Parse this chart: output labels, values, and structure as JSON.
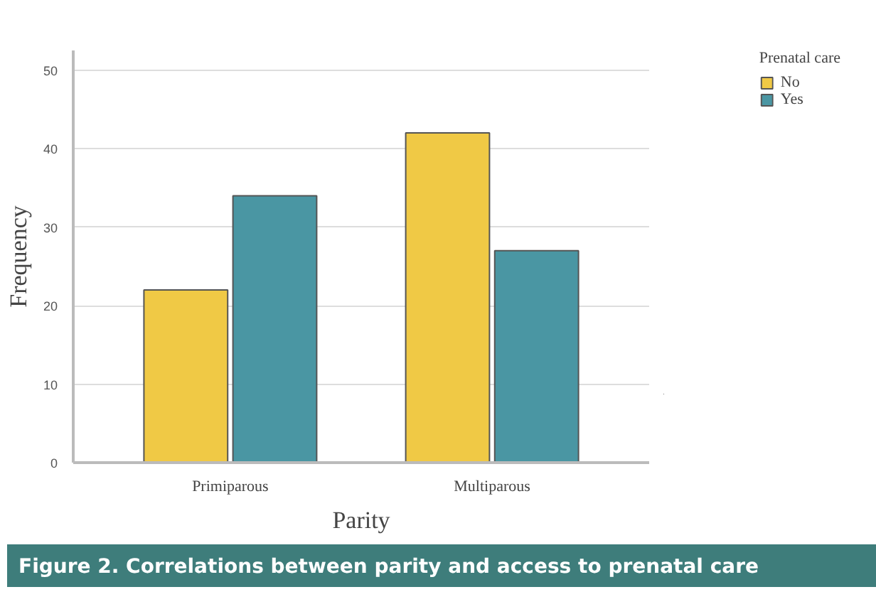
{
  "chart_data": {
    "type": "bar",
    "xlabel": "Parity",
    "ylabel": "Frequency",
    "legend_title": "Prenatal care",
    "categories": [
      "Primiparous",
      "Multiparous"
    ],
    "series": [
      {
        "name": "No",
        "color": "#f0c945",
        "values": [
          22,
          42
        ]
      },
      {
        "name": "Yes",
        "color": "#4a96a3",
        "values": [
          34,
          27
        ]
      }
    ],
    "ylim": [
      0,
      52.5
    ],
    "yticks": [
      0,
      10,
      20,
      30,
      40,
      50
    ],
    "grid": "y",
    "legend": "top right",
    "annotations": [
      "Figure 2. Correlations between parity and access to prenatal care"
    ]
  }
}
